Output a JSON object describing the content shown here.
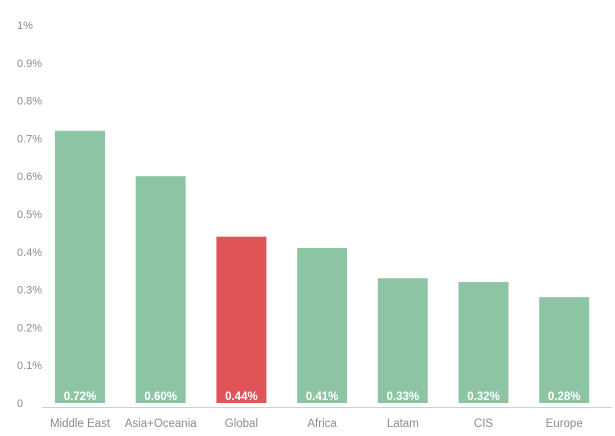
{
  "chart_data": {
    "type": "bar",
    "categories": [
      "Middle East",
      "Asia+Oceania",
      "Global",
      "Africa",
      "Latam",
      "CIS",
      "Europe"
    ],
    "values": [
      0.72,
      0.6,
      0.44,
      0.41,
      0.33,
      0.32,
      0.28
    ],
    "data_labels": [
      "0.72%",
      "0.60%",
      "0.44%",
      "0.41%",
      "0.33%",
      "0.32%",
      "0.28%"
    ],
    "highlight_category": "Global",
    "ylim": [
      0,
      1
    ],
    "yticks": [
      0,
      0.1,
      0.2,
      0.3,
      0.4,
      0.5,
      0.6,
      0.7,
      0.8,
      0.9,
      1.0
    ],
    "ytick_labels": [
      "0",
      "0.1%",
      "0.2%",
      "0.3%",
      "0.4%",
      "0.5%",
      "0.6%",
      "0.7%",
      "0.8%",
      "0.9%",
      "1%"
    ],
    "grid": false,
    "legend": "none",
    "title": "",
    "xlabel": "",
    "ylabel": "",
    "colors": {
      "bar": "#8dc5a4",
      "highlight": "#e05357",
      "axis": "#cfcfcf"
    }
  }
}
